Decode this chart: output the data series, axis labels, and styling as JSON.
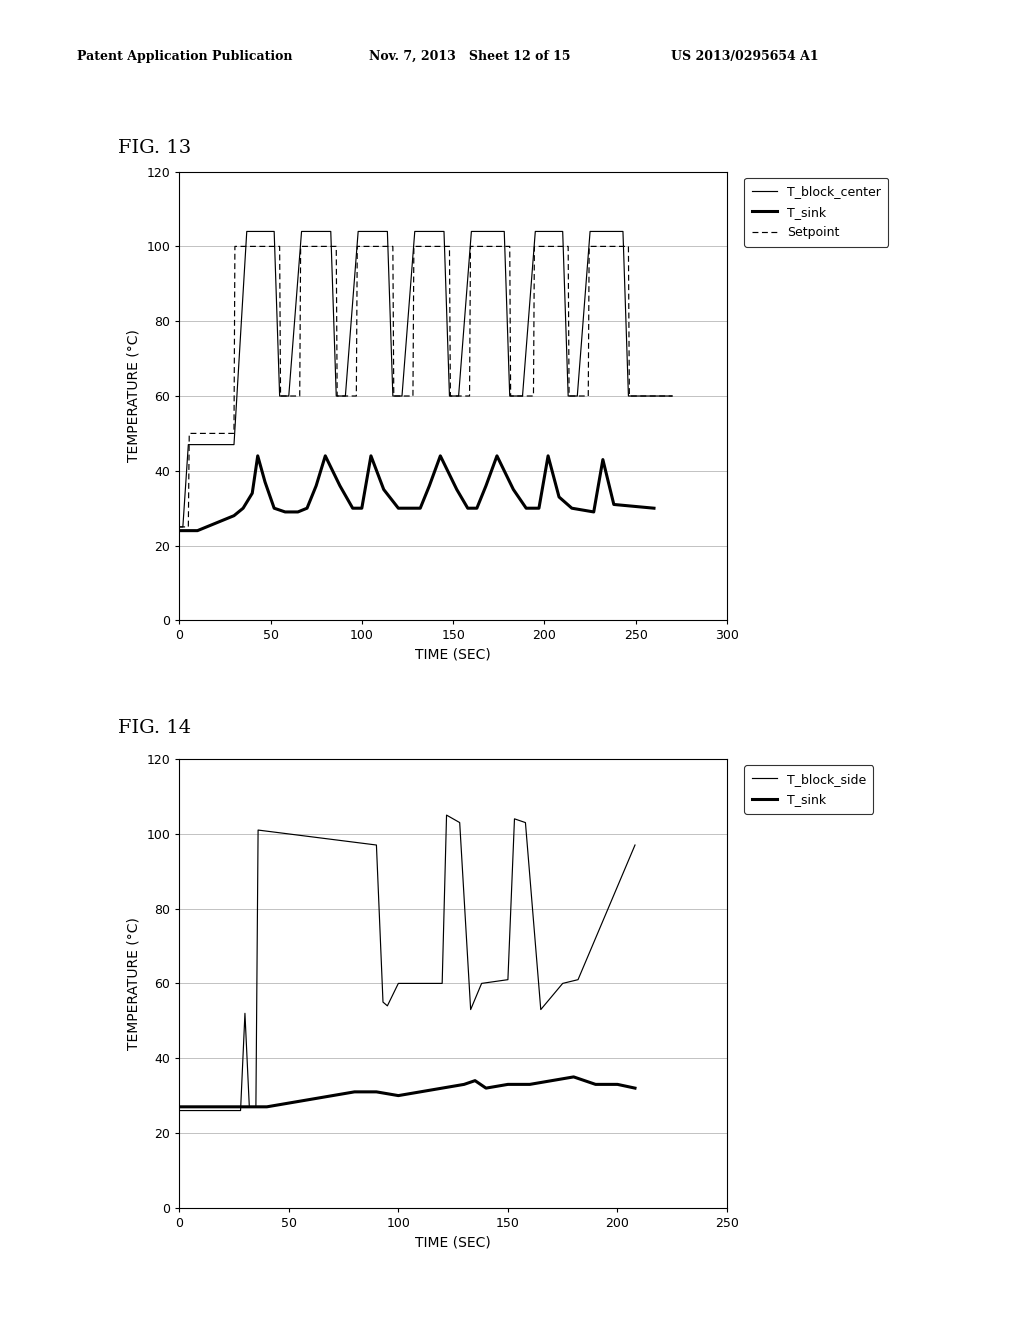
{
  "header_left": "Patent Application Publication",
  "header_mid": "Nov. 7, 2013   Sheet 12 of 15",
  "header_right": "US 2013/0295654 A1",
  "fig13_label": "FIG. 13",
  "fig14_label": "FIG. 14",
  "xlabel": "TIME (SEC)",
  "ylabel": "TEMPERATURE (°C)",
  "fig13_xlim": [
    0,
    300
  ],
  "fig13_xticks": [
    0,
    50,
    100,
    150,
    200,
    250,
    300
  ],
  "fig13_ylim": [
    0,
    120
  ],
  "fig13_yticks": [
    0,
    20,
    40,
    60,
    80,
    100,
    120
  ],
  "fig14_xlim": [
    0,
    250
  ],
  "fig14_xticks": [
    0,
    50,
    100,
    150,
    200,
    250
  ],
  "fig14_ylim": [
    0,
    120
  ],
  "fig14_yticks": [
    0,
    20,
    40,
    60,
    80,
    100,
    120
  ],
  "background_color": "#ffffff",
  "line_color": "#000000",
  "grid_color": "#aaaaaa"
}
